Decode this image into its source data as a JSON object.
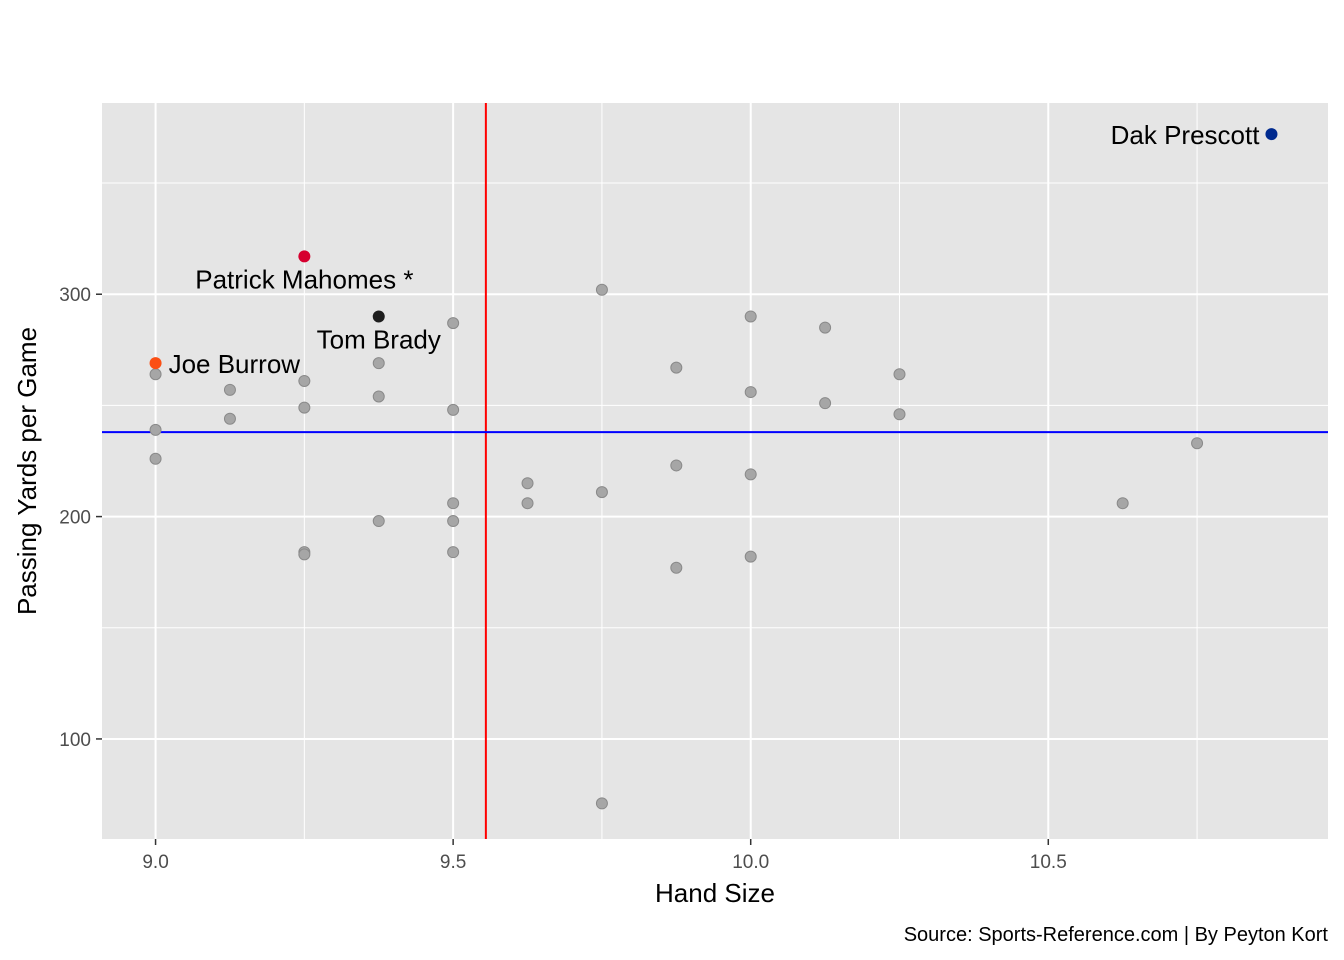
{
  "chart_data": {
    "type": "scatter",
    "title": "",
    "xlabel": "Hand Size",
    "ylabel": "Passing Yards per Game",
    "caption": "Source: Sports-Reference.com | By Peyton Kort",
    "xlim": [
      8.91,
      10.97
    ],
    "ylim": [
      55,
      386
    ],
    "x_ticks": [
      9.0,
      9.5,
      10.0,
      10.5
    ],
    "x_tick_labels": [
      "9.0",
      "9.5",
      "10.0",
      "10.5"
    ],
    "y_ticks": [
      100,
      200,
      300
    ],
    "y_tick_labels": [
      "100",
      "200",
      "300"
    ],
    "grid": true,
    "reference_lines": {
      "vertical_x": 9.555,
      "vertical_color": "#ff0000",
      "horizontal_y": 238,
      "horizontal_color": "#0000ff"
    },
    "colors": {
      "panel_background": "#e5e5e5",
      "grid": "#ffffff",
      "default_point": "#a6a6a6",
      "default_point_outline": "#8a8a8a"
    },
    "points": [
      {
        "x": 9.0,
        "y": 264
      },
      {
        "x": 9.0,
        "y": 239
      },
      {
        "x": 9.0,
        "y": 226
      },
      {
        "x": 9.125,
        "y": 257
      },
      {
        "x": 9.125,
        "y": 244
      },
      {
        "x": 9.25,
        "y": 261
      },
      {
        "x": 9.25,
        "y": 249
      },
      {
        "x": 9.25,
        "y": 184
      },
      {
        "x": 9.25,
        "y": 183
      },
      {
        "x": 9.375,
        "y": 269
      },
      {
        "x": 9.375,
        "y": 254
      },
      {
        "x": 9.375,
        "y": 198
      },
      {
        "x": 9.5,
        "y": 287
      },
      {
        "x": 9.5,
        "y": 248
      },
      {
        "x": 9.5,
        "y": 206
      },
      {
        "x": 9.5,
        "y": 198
      },
      {
        "x": 9.5,
        "y": 184
      },
      {
        "x": 9.625,
        "y": 215
      },
      {
        "x": 9.625,
        "y": 206
      },
      {
        "x": 9.75,
        "y": 302
      },
      {
        "x": 9.75,
        "y": 211
      },
      {
        "x": 9.75,
        "y": 71
      },
      {
        "x": 9.875,
        "y": 267
      },
      {
        "x": 9.875,
        "y": 223
      },
      {
        "x": 9.875,
        "y": 177
      },
      {
        "x": 10.0,
        "y": 290
      },
      {
        "x": 10.0,
        "y": 256
      },
      {
        "x": 10.0,
        "y": 219
      },
      {
        "x": 10.0,
        "y": 182
      },
      {
        "x": 10.125,
        "y": 285
      },
      {
        "x": 10.125,
        "y": 251
      },
      {
        "x": 10.25,
        "y": 264
      },
      {
        "x": 10.25,
        "y": 246
      },
      {
        "x": 10.625,
        "y": 206
      },
      {
        "x": 10.75,
        "y": 233
      }
    ],
    "highlighted": [
      {
        "name": "Dak Prescott",
        "x": 10.875,
        "y": 372,
        "color": "#002a8f",
        "label_anchor": "end"
      },
      {
        "name": "Patrick Mahomes *",
        "x": 9.25,
        "y": 317,
        "color": "#d6002f",
        "label_anchor": "middle"
      },
      {
        "name": "Tom Brady",
        "x": 9.375,
        "y": 290,
        "color": "#1e1e1e",
        "label_anchor": "middle"
      },
      {
        "name": "Joe Burrow",
        "x": 9.0,
        "y": 269,
        "color": "#fb4f14",
        "label_anchor": "start"
      }
    ]
  }
}
